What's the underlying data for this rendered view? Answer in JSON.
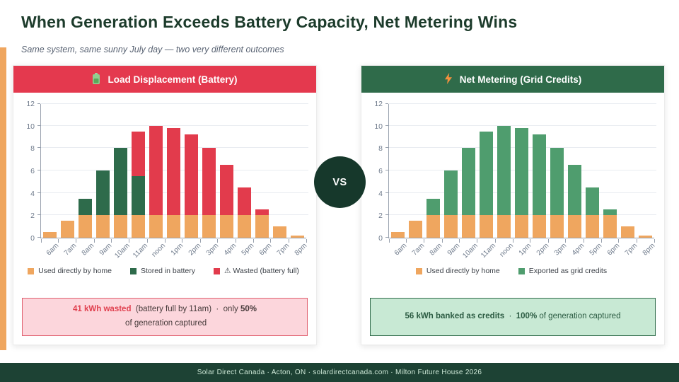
{
  "header": {
    "title": "When Generation Exceeds Battery Capacity, Net Metering Wins",
    "subtitle": "Same system, same sunny July day — two very different outcomes"
  },
  "vs_label": "VS",
  "panels": [
    {
      "title": "Load Displacement (Battery)",
      "icon": "battery-icon",
      "header_color": "#e4394e",
      "callout": {
        "highlight": "41 kWh wasted",
        "mid": "  (battery full by 11am)  ·  only ",
        "bold": "50%",
        "tail": " of generation captured",
        "bg": "#fcd6dc",
        "border": "#e0606f"
      }
    },
    {
      "title": "Net Metering (Grid Credits)",
      "icon": "lightning-icon",
      "header_color": "#2f6b4a",
      "callout": {
        "highlight": "56 kWh banked as credits",
        "mid": "  ·  ",
        "bold": "100%",
        "tail": " of generation captured",
        "bg": "#c8e9d4",
        "border": "#2f6b4a"
      }
    }
  ],
  "chart_data": [
    {
      "type": "bar",
      "stacked": true,
      "title": "Load Displacement (Battery)",
      "categories": [
        "6am",
        "7am",
        "8am",
        "9am",
        "10am",
        "11am",
        "noon",
        "1pm",
        "2pm",
        "3pm",
        "4pm",
        "5pm",
        "6pm",
        "7pm",
        "8pm"
      ],
      "series": [
        {
          "name": "Used directly by home",
          "color": "#efa65f",
          "values": [
            0.5,
            1.5,
            2,
            2,
            2,
            2,
            2,
            2,
            2,
            2,
            2,
            2,
            2,
            1,
            0.2
          ]
        },
        {
          "name": "Stored in battery",
          "color": "#2e6b4b",
          "values": [
            0,
            0,
            1.5,
            4,
            6,
            3.5,
            0,
            0,
            0,
            0,
            0,
            0,
            0,
            0,
            0
          ]
        },
        {
          "name": "⚠ Wasted (battery full)",
          "color": "#e23b4c",
          "values": [
            0,
            0,
            0,
            0,
            0,
            4,
            8,
            7.8,
            7.2,
            6,
            4.5,
            2.5,
            0.5,
            0,
            0
          ]
        }
      ],
      "ylim": [
        0,
        12
      ],
      "ytick_step": 2,
      "grid": true,
      "legend_position": "bottom"
    },
    {
      "type": "bar",
      "stacked": true,
      "title": "Net Metering (Grid Credits)",
      "categories": [
        "6am",
        "7am",
        "8am",
        "9am",
        "10am",
        "11am",
        "noon",
        "1pm",
        "2pm",
        "3pm",
        "4pm",
        "5pm",
        "6pm",
        "7pm",
        "8pm"
      ],
      "series": [
        {
          "name": "Used directly by home",
          "color": "#efa65f",
          "values": [
            0.5,
            1.5,
            2,
            2,
            2,
            2,
            2,
            2,
            2,
            2,
            2,
            2,
            2,
            1,
            0.2
          ]
        },
        {
          "name": "Exported as grid credits",
          "color": "#4f9d6e",
          "values": [
            0,
            0,
            1.5,
            4,
            6,
            7.5,
            8,
            7.8,
            7.2,
            6,
            4.5,
            2.5,
            0.5,
            0,
            0
          ]
        }
      ],
      "ylim": [
        0,
        12
      ],
      "ytick_step": 2,
      "grid": true,
      "legend_position": "bottom"
    }
  ],
  "footer": {
    "text": "Solar Direct Canada  ·  Acton, ON  ·  solardirectcanada.com  ·  Milton Future House 2026"
  }
}
